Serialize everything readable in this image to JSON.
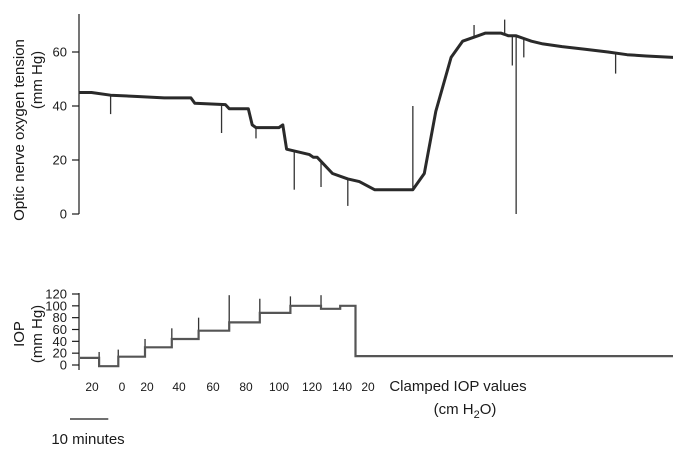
{
  "chart_data": [
    {
      "type": "line",
      "ylabel_line1": "Optic nerve oxygen tension",
      "ylabel_line2": "(mm Hg)",
      "ylim": [
        0,
        75
      ],
      "yticks": [
        "0",
        "20",
        "40",
        "60"
      ],
      "x_unit": "minutes",
      "xlim": [
        0,
        155
      ],
      "series": [
        {
          "x": [
            0,
            3,
            8,
            15,
            22,
            29,
            30,
            38,
            39,
            44,
            45,
            46,
            52,
            53,
            54,
            60,
            61,
            62,
            66,
            70,
            73,
            77,
            80,
            82,
            87,
            90,
            93,
            97,
            100,
            104,
            106,
            108,
            110,
            111,
            112,
            114,
            116,
            118,
            121,
            126,
            132,
            138,
            143,
            148,
            155
          ],
          "y": [
            45,
            45,
            44,
            43.5,
            43,
            43,
            41,
            40.5,
            39,
            39,
            33,
            32,
            32,
            33,
            24,
            22,
            21,
            21,
            15,
            13,
            12,
            9,
            9,
            9,
            9,
            15,
            38,
            58,
            64,
            66,
            67,
            67,
            67,
            66.5,
            66,
            66,
            65,
            64,
            63,
            62,
            61,
            60,
            59,
            58.5,
            58
          ]
        }
      ],
      "spikes": [
        {
          "x": 8,
          "y": 37
        },
        {
          "x": 37,
          "y": 30
        },
        {
          "x": 46,
          "y": 28
        },
        {
          "x": 56,
          "y": 9
        },
        {
          "x": 63,
          "y": 10
        },
        {
          "x": 70,
          "y": 3
        },
        {
          "x": 87,
          "y": 40
        },
        {
          "x": 103,
          "y": 70
        },
        {
          "x": 111,
          "y": 72
        },
        {
          "x": 113,
          "y": 55
        },
        {
          "x": 114,
          "y": 0
        },
        {
          "x": 116,
          "y": 58
        },
        {
          "x": 140,
          "y": 52
        }
      ]
    },
    {
      "type": "line",
      "ylabel_line1": "IOP",
      "ylabel_line2": "(mm Hg)",
      "ylim": [
        -5,
        120
      ],
      "yticks": [
        "0",
        "20",
        "40",
        "60",
        "80",
        "100",
        "120"
      ],
      "x_unit": "minutes",
      "xlim": [
        0,
        155
      ],
      "series": [
        {
          "x": [
            0,
            5,
            5,
            10,
            10,
            17,
            17,
            24,
            24,
            31,
            31,
            39,
            39,
            47,
            47,
            55,
            55,
            63,
            63,
            68,
            68,
            72,
            72,
            155
          ],
          "y": [
            12,
            12,
            -2,
            -2,
            14,
            14,
            30,
            30,
            44,
            44,
            58,
            58,
            72,
            72,
            88,
            88,
            100,
            100,
            95,
            95,
            100,
            100,
            15,
            15
          ]
        }
      ],
      "spikes": [
        {
          "x": 5,
          "y": 22
        },
        {
          "x": 10,
          "y": 26
        },
        {
          "x": 17,
          "y": 44
        },
        {
          "x": 24,
          "y": 62
        },
        {
          "x": 31,
          "y": 80
        },
        {
          "x": 39,
          "y": 118
        },
        {
          "x": 47,
          "y": 112
        },
        {
          "x": 55,
          "y": 116
        },
        {
          "x": 63,
          "y": 118
        }
      ]
    }
  ],
  "clamped_iop_values": [
    "20",
    "0",
    "20",
    "40",
    "60",
    "80",
    "100",
    "120",
    "140",
    "20"
  ],
  "clamped_label_line1": "Clamped IOP values",
  "clamped_label_line2_pre": "(cm H",
  "clamped_label_line2_sub": "2",
  "clamped_label_line2_post": "O)",
  "scale_bar": {
    "minutes": 10,
    "label": "10 minutes"
  }
}
